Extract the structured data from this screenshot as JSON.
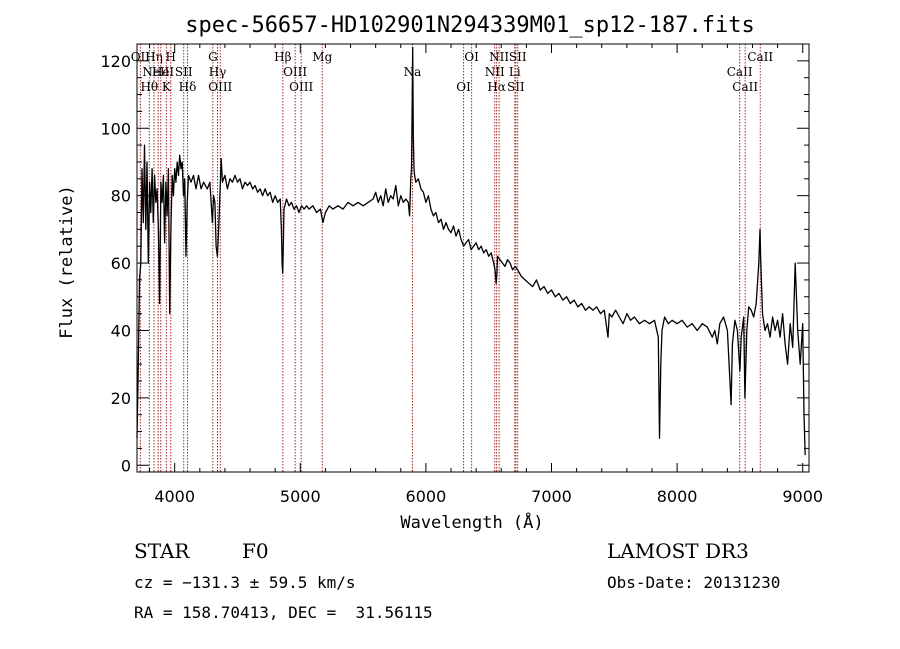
{
  "chart_data": {
    "type": "line",
    "title": "spec-56657-HD102901N294339M01_sp12-187.fits",
    "xlabel": "Wavelength (Å)",
    "ylabel": "Flux (relative)",
    "xlim": [
      3700,
      9050
    ],
    "ylim": [
      -2,
      125
    ],
    "x_ticks": [
      4000,
      5000,
      6000,
      7000,
      8000,
      9000
    ],
    "y_ticks": [
      0,
      20,
      40,
      60,
      80,
      100,
      120
    ],
    "grid": false,
    "legend": "none",
    "series": [
      {
        "points": [
          [
            3700,
            8
          ],
          [
            3710,
            30
          ],
          [
            3720,
            55
          ],
          [
            3730,
            60
          ],
          [
            3740,
            88
          ],
          [
            3750,
            72
          ],
          [
            3760,
            95
          ],
          [
            3770,
            70
          ],
          [
            3780,
            90
          ],
          [
            3790,
            60
          ],
          [
            3800,
            84
          ],
          [
            3810,
            75
          ],
          [
            3820,
            88
          ],
          [
            3830,
            72
          ],
          [
            3840,
            86
          ],
          [
            3850,
            78
          ],
          [
            3860,
            82
          ],
          [
            3870,
            70
          ],
          [
            3880,
            48
          ],
          [
            3890,
            84
          ],
          [
            3900,
            78
          ],
          [
            3910,
            86
          ],
          [
            3920,
            66
          ],
          [
            3930,
            84
          ],
          [
            3940,
            74
          ],
          [
            3950,
            88
          ],
          [
            3960,
            45
          ],
          [
            3970,
            70
          ],
          [
            3980,
            86
          ],
          [
            3990,
            80
          ],
          [
            4000,
            88
          ],
          [
            4010,
            84
          ],
          [
            4020,
            90
          ],
          [
            4030,
            86
          ],
          [
            4040,
            92
          ],
          [
            4050,
            88
          ],
          [
            4060,
            90
          ],
          [
            4070,
            80
          ],
          [
            4080,
            85
          ],
          [
            4090,
            62
          ],
          [
            4100,
            78
          ],
          [
            4110,
            86
          ],
          [
            4130,
            84
          ],
          [
            4150,
            86
          ],
          [
            4170,
            82
          ],
          [
            4190,
            86
          ],
          [
            4210,
            82
          ],
          [
            4230,
            84
          ],
          [
            4260,
            82
          ],
          [
            4280,
            84
          ],
          [
            4300,
            72
          ],
          [
            4310,
            80
          ],
          [
            4320,
            78
          ],
          [
            4330,
            65
          ],
          [
            4340,
            62
          ],
          [
            4350,
            70
          ],
          [
            4360,
            80
          ],
          [
            4370,
            91
          ],
          [
            4380,
            84
          ],
          [
            4400,
            86
          ],
          [
            4420,
            82
          ],
          [
            4440,
            85
          ],
          [
            4460,
            84
          ],
          [
            4480,
            86
          ],
          [
            4500,
            84
          ],
          [
            4520,
            85
          ],
          [
            4540,
            82
          ],
          [
            4560,
            84
          ],
          [
            4580,
            83
          ],
          [
            4600,
            84
          ],
          [
            4620,
            82
          ],
          [
            4640,
            83
          ],
          [
            4660,
            81
          ],
          [
            4680,
            82
          ],
          [
            4700,
            80
          ],
          [
            4720,
            82
          ],
          [
            4740,
            80
          ],
          [
            4760,
            81
          ],
          [
            4780,
            78
          ],
          [
            4800,
            80
          ],
          [
            4820,
            78
          ],
          [
            4840,
            79
          ],
          [
            4850,
            70
          ],
          [
            4855,
            60
          ],
          [
            4860,
            57
          ],
          [
            4865,
            65
          ],
          [
            4870,
            76
          ],
          [
            4890,
            79
          ],
          [
            4910,
            77
          ],
          [
            4930,
            78
          ],
          [
            4950,
            76
          ],
          [
            4970,
            77
          ],
          [
            4990,
            75
          ],
          [
            5010,
            77
          ],
          [
            5030,
            76
          ],
          [
            5050,
            77
          ],
          [
            5070,
            76
          ],
          [
            5100,
            77
          ],
          [
            5130,
            75
          ],
          [
            5160,
            76
          ],
          [
            5180,
            72
          ],
          [
            5200,
            75
          ],
          [
            5230,
            77
          ],
          [
            5260,
            76
          ],
          [
            5300,
            77
          ],
          [
            5340,
            76
          ],
          [
            5380,
            78
          ],
          [
            5420,
            77
          ],
          [
            5460,
            78
          ],
          [
            5500,
            77
          ],
          [
            5540,
            78
          ],
          [
            5580,
            79
          ],
          [
            5600,
            81
          ],
          [
            5620,
            78
          ],
          [
            5640,
            80
          ],
          [
            5660,
            77
          ],
          [
            5680,
            82
          ],
          [
            5700,
            78
          ],
          [
            5720,
            80
          ],
          [
            5740,
            79
          ],
          [
            5760,
            83
          ],
          [
            5780,
            77
          ],
          [
            5800,
            80
          ],
          [
            5820,
            78
          ],
          [
            5840,
            79
          ],
          [
            5860,
            78
          ],
          [
            5870,
            74
          ],
          [
            5880,
            85
          ],
          [
            5885,
            88
          ],
          [
            5890,
            105
          ],
          [
            5895,
            124
          ],
          [
            5900,
            98
          ],
          [
            5905,
            88
          ],
          [
            5910,
            86
          ],
          [
            5920,
            84
          ],
          [
            5940,
            85
          ],
          [
            5960,
            82
          ],
          [
            5980,
            81
          ],
          [
            6000,
            78
          ],
          [
            6020,
            80
          ],
          [
            6040,
            76
          ],
          [
            6060,
            74
          ],
          [
            6080,
            75
          ],
          [
            6100,
            72
          ],
          [
            6120,
            73
          ],
          [
            6140,
            70
          ],
          [
            6160,
            72
          ],
          [
            6180,
            70
          ],
          [
            6200,
            69
          ],
          [
            6220,
            71
          ],
          [
            6240,
            68
          ],
          [
            6260,
            70
          ],
          [
            6280,
            67
          ],
          [
            6300,
            65
          ],
          [
            6320,
            66
          ],
          [
            6340,
            67
          ],
          [
            6360,
            64
          ],
          [
            6380,
            65
          ],
          [
            6400,
            66
          ],
          [
            6420,
            64
          ],
          [
            6440,
            65
          ],
          [
            6460,
            63
          ],
          [
            6480,
            64
          ],
          [
            6500,
            62
          ],
          [
            6520,
            63
          ],
          [
            6540,
            60
          ],
          [
            6550,
            58
          ],
          [
            6560,
            54
          ],
          [
            6565,
            57
          ],
          [
            6570,
            62
          ],
          [
            6590,
            61
          ],
          [
            6610,
            60
          ],
          [
            6630,
            59
          ],
          [
            6650,
            61
          ],
          [
            6670,
            60
          ],
          [
            6690,
            58
          ],
          [
            6710,
            59
          ],
          [
            6730,
            58
          ],
          [
            6760,
            56
          ],
          [
            6790,
            55
          ],
          [
            6820,
            54
          ],
          [
            6850,
            53
          ],
          [
            6880,
            55
          ],
          [
            6910,
            52
          ],
          [
            6940,
            53
          ],
          [
            6970,
            51
          ],
          [
            7000,
            52
          ],
          [
            7030,
            50
          ],
          [
            7060,
            51
          ],
          [
            7090,
            49
          ],
          [
            7120,
            50
          ],
          [
            7150,
            48
          ],
          [
            7180,
            49
          ],
          [
            7210,
            47
          ],
          [
            7240,
            48
          ],
          [
            7270,
            46
          ],
          [
            7300,
            47
          ],
          [
            7330,
            46
          ],
          [
            7360,
            47
          ],
          [
            7390,
            45
          ],
          [
            7420,
            46
          ],
          [
            7450,
            38
          ],
          [
            7460,
            45
          ],
          [
            7480,
            44
          ],
          [
            7510,
            46
          ],
          [
            7540,
            44
          ],
          [
            7570,
            42
          ],
          [
            7600,
            45
          ],
          [
            7630,
            43
          ],
          [
            7660,
            44
          ],
          [
            7700,
            42
          ],
          [
            7740,
            43
          ],
          [
            7780,
            42
          ],
          [
            7820,
            43
          ],
          [
            7850,
            38
          ],
          [
            7860,
            8
          ],
          [
            7870,
            30
          ],
          [
            7880,
            40
          ],
          [
            7900,
            44
          ],
          [
            7930,
            42
          ],
          [
            7960,
            43
          ],
          [
            8000,
            42
          ],
          [
            8040,
            43
          ],
          [
            8080,
            41
          ],
          [
            8120,
            42
          ],
          [
            8160,
            40
          ],
          [
            8200,
            42
          ],
          [
            8240,
            41
          ],
          [
            8280,
            38
          ],
          [
            8300,
            40
          ],
          [
            8320,
            36
          ],
          [
            8340,
            42
          ],
          [
            8370,
            44
          ],
          [
            8400,
            40
          ],
          [
            8430,
            18
          ],
          [
            8440,
            36
          ],
          [
            8460,
            43
          ],
          [
            8480,
            40
          ],
          [
            8500,
            28
          ],
          [
            8510,
            38
          ],
          [
            8530,
            44
          ],
          [
            8540,
            20
          ],
          [
            8555,
            40
          ],
          [
            8570,
            47
          ],
          [
            8590,
            46
          ],
          [
            8610,
            44
          ],
          [
            8630,
            48
          ],
          [
            8650,
            60
          ],
          [
            8660,
            70
          ],
          [
            8665,
            62
          ],
          [
            8680,
            45
          ],
          [
            8700,
            40
          ],
          [
            8720,
            42
          ],
          [
            8740,
            38
          ],
          [
            8760,
            44
          ],
          [
            8780,
            40
          ],
          [
            8800,
            43
          ],
          [
            8820,
            38
          ],
          [
            8840,
            45
          ],
          [
            8860,
            36
          ],
          [
            8880,
            30
          ],
          [
            8900,
            42
          ],
          [
            8920,
            35
          ],
          [
            8940,
            60
          ],
          [
            8960,
            40
          ],
          [
            8980,
            30
          ],
          [
            9000,
            42
          ],
          [
            9010,
            15
          ],
          [
            9020,
            3
          ]
        ]
      }
    ],
    "spectral_lines": [
      {
        "wl": 3727,
        "label": "OII",
        "tier": 0
      },
      {
        "wl": 3798,
        "label": "Hθ",
        "tier": 2
      },
      {
        "wl": 3835,
        "label": "Hη",
        "tier": 0
      },
      {
        "wl": 3869,
        "label": "NeIII",
        "tier": 1
      },
      {
        "wl": 3889,
        "label": "He",
        "tier": 1
      },
      {
        "wl": 3934,
        "label": "K",
        "tier": 2
      },
      {
        "wl": 3969,
        "label": "H",
        "tier": 0
      },
      {
        "wl": 4072,
        "label": "SII",
        "tier": 1
      },
      {
        "wl": 4102,
        "label": "Hδ",
        "tier": 2
      },
      {
        "wl": 4304,
        "label": "G",
        "tier": 0
      },
      {
        "wl": 4341,
        "label": "Hγ",
        "tier": 1
      },
      {
        "wl": 4363,
        "label": "OIII",
        "tier": 2
      },
      {
        "wl": 4861,
        "label": "Hβ",
        "tier": 0
      },
      {
        "wl": 4959,
        "label": "OIII",
        "tier": 1
      },
      {
        "wl": 5007,
        "label": "OIII",
        "tier": 2
      },
      {
        "wl": 5175,
        "label": "Mg",
        "tier": 0
      },
      {
        "wl": 5893,
        "label": "Na",
        "tier": 1
      },
      {
        "wl": 6300,
        "label": "OI",
        "tier": 2
      },
      {
        "wl": 6364,
        "label": "OI",
        "tier": 0
      },
      {
        "wl": 6548,
        "label": "NII",
        "tier": 1
      },
      {
        "wl": 6563,
        "label": "Hα",
        "tier": 2
      },
      {
        "wl": 6583,
        "label": "NII",
        "tier": 0
      },
      {
        "wl": 6708,
        "label": "Li",
        "tier": 1
      },
      {
        "wl": 6716,
        "label": "SII",
        "tier": 2
      },
      {
        "wl": 6731,
        "label": "SII",
        "tier": 0
      },
      {
        "wl": 8498,
        "label": "CaII",
        "tier": 1
      },
      {
        "wl": 8542,
        "label": "CaII",
        "tier": 2
      },
      {
        "wl": 8662,
        "label": "CaII",
        "tier": 0
      }
    ]
  },
  "info": {
    "class": "STAR",
    "subclass": "F0",
    "survey": "LAMOST DR3",
    "cz": "cz = −131.3 ± 59.5 km/s",
    "obs_date": "Obs-Date: 20131230",
    "coords": "RA = 158.70413, DEC =  31.56115"
  },
  "colors": {
    "line_marker": "#a52a2a",
    "spectrum": "#000000"
  }
}
